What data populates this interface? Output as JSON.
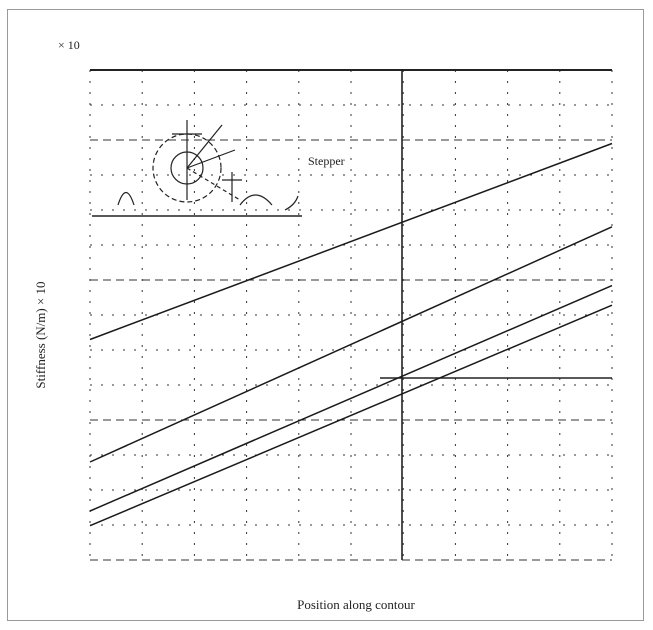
{
  "chart_data": {
    "type": "line",
    "title": "",
    "xlabel": "Position along contour",
    "ylabel": "Stiffness (N/m) × 10",
    "inset_label": "Stepper",
    "top_tick_label": "× 10",
    "xlim": [
      0,
      10
    ],
    "ylim": [
      0,
      10
    ],
    "grid": true,
    "legend": "none",
    "series": [
      {
        "x": [
          0,
          10
        ],
        "y": [
          4.5,
          8.5
        ]
      },
      {
        "x": [
          0,
          10
        ],
        "y": [
          2.0,
          6.8
        ]
      },
      {
        "x": [
          0,
          10
        ],
        "y": [
          1.0,
          5.6
        ]
      },
      {
        "x": [
          0,
          10
        ],
        "y": [
          0.7,
          5.2
        ]
      }
    ],
    "colors": {
      "line": "#1a1a1a",
      "grid": "#333333",
      "frame": "#9a9a9a"
    }
  }
}
